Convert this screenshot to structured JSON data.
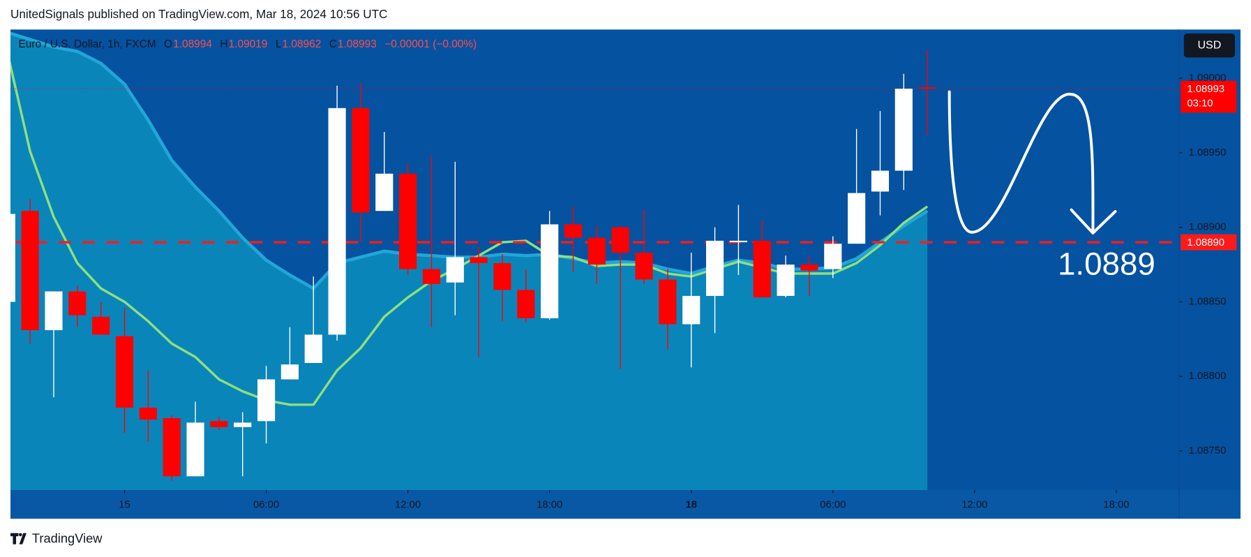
{
  "header": "UnitedSignals published on TradingView.com, Mar 18, 2024 10:56 UTC",
  "footer_brand": "TradingView",
  "chart_data": {
    "type": "candlestick",
    "legend": {
      "symbol": "Euro / U.S. Dollar, 1h, FXCM",
      "items": [
        {
          "key": "O",
          "value": "1.08994"
        },
        {
          "key": "H",
          "value": "1.09019"
        },
        {
          "key": "L",
          "value": "1.08962"
        },
        {
          "key": "C",
          "value": "1.08993"
        }
      ],
      "change": "−0.00001 (−0.00%)"
    },
    "currency": "USD",
    "up_color": "#ffffff",
    "down_color": "#ff0000",
    "x": [
      -5,
      -4,
      -3,
      -2,
      -1,
      0,
      1,
      2,
      3,
      4,
      5,
      6,
      7,
      8,
      9,
      10,
      11,
      12,
      13,
      14,
      15,
      16,
      17,
      18,
      19,
      20,
      21,
      22,
      23,
      24,
      25,
      26,
      27,
      28,
      29,
      30,
      31,
      32,
      33,
      34
    ],
    "open": [
      1.0885,
      1.08911,
      1.08831,
      1.08857,
      1.0884,
      1.08827,
      1.08779,
      1.08772,
      1.08733,
      1.0877,
      1.08766,
      1.0877,
      1.08798,
      1.08809,
      1.08828,
      1.0898,
      1.08911,
      1.08936,
      1.08872,
      1.08863,
      1.0888,
      1.08876,
      1.08858,
      1.08839,
      1.08902,
      1.08893,
      1.089,
      1.08883,
      1.08865,
      1.08835,
      1.08854,
      1.0889,
      1.08891,
      1.08854,
      1.08875,
      1.08872,
      1.08889,
      1.08924,
      1.08938,
      1.08994
    ],
    "high": [
      1.08909,
      1.08919,
      1.08857,
      1.08861,
      1.0885,
      1.08846,
      1.08804,
      1.08774,
      1.08783,
      1.08773,
      1.08776,
      1.08807,
      1.08833,
      1.08867,
      1.08995,
      1.08997,
      1.08964,
      1.08943,
      1.08948,
      1.08944,
      1.08887,
      1.08882,
      1.08872,
      1.08911,
      1.08914,
      1.08901,
      1.08901,
      1.08912,
      1.08872,
      1.08883,
      1.089,
      1.08915,
      1.08905,
      1.08881,
      1.08881,
      1.08894,
      1.08966,
      1.08978,
      1.09003,
      1.09019
    ],
    "low": [
      1.0885,
      1.08822,
      1.08786,
      1.08833,
      1.08828,
      1.08762,
      1.08756,
      1.0873,
      1.08733,
      1.08764,
      1.08733,
      1.08755,
      1.08798,
      1.08809,
      1.08824,
      1.0889,
      1.08911,
      1.08868,
      1.08833,
      1.08841,
      1.08813,
      1.08837,
      1.08836,
      1.08838,
      1.0887,
      1.08862,
      1.08805,
      1.08862,
      1.08818,
      1.08806,
      1.08829,
      1.08868,
      1.08853,
      1.08853,
      1.08854,
      1.08866,
      1.08889,
      1.08908,
      1.08925,
      1.08962
    ],
    "close": [
      1.08909,
      1.08831,
      1.08857,
      1.08841,
      1.08828,
      1.08779,
      1.08771,
      1.08733,
      1.08769,
      1.08766,
      1.08769,
      1.08798,
      1.08808,
      1.08828,
      1.0898,
      1.0891,
      1.08936,
      1.08872,
      1.08862,
      1.0888,
      1.08876,
      1.08858,
      1.08839,
      1.08902,
      1.08893,
      1.08875,
      1.08883,
      1.08865,
      1.08835,
      1.08854,
      1.08891,
      1.08891,
      1.08853,
      1.08875,
      1.08871,
      1.08889,
      1.08923,
      1.08938,
      1.08993,
      1.08993
    ],
    "indicators": [
      {
        "kind": "area",
        "color": "#0a85ba",
        "line_color": "#22a6d8",
        "values": [
          1.09031,
          1.09026,
          1.09021,
          1.09018,
          1.0901,
          1.08996,
          1.08972,
          1.08945,
          1.08927,
          1.08911,
          1.08893,
          1.08878,
          1.08868,
          1.08859,
          1.08876,
          1.0888,
          1.08884,
          1.08882,
          1.08881,
          1.0888,
          1.0888,
          1.08882,
          1.08881,
          1.08882,
          1.08879,
          1.08876,
          1.08877,
          1.08876,
          1.08872,
          1.08869,
          1.08874,
          1.08878,
          1.08876,
          1.08872,
          1.08872,
          1.08873,
          1.08879,
          1.0889,
          1.08901,
          1.08911
        ]
      },
      {
        "kind": "line",
        "color": "#8ee07e",
        "values": [
          1.0902,
          1.08951,
          1.08907,
          1.08876,
          1.08859,
          1.0885,
          1.08837,
          1.08822,
          1.08813,
          1.08798,
          1.0879,
          1.08784,
          1.08781,
          1.08781,
          1.08804,
          1.08819,
          1.0884,
          1.08853,
          1.08864,
          1.08872,
          1.08881,
          1.0889,
          1.08891,
          1.08881,
          1.0888,
          1.08874,
          1.08875,
          1.08875,
          1.08869,
          1.08867,
          1.08872,
          1.08877,
          1.08873,
          1.08869,
          1.08869,
          1.08869,
          1.08876,
          1.08888,
          1.08903,
          1.08914
        ]
      }
    ],
    "level": {
      "value": 1.0889,
      "label": "1.08890",
      "annotation": "1.0889",
      "color": "#ff1a1a"
    },
    "last_price": {
      "value": 1.08993,
      "label": "1.08993",
      "countdown": "03:10"
    },
    "xlim": [
      -4.83,
      44.66
    ],
    "xticks": [
      {
        "value": 0,
        "label": "15"
      },
      {
        "value": 6,
        "label": "06:00"
      },
      {
        "value": 12,
        "label": "12:00"
      },
      {
        "value": 18,
        "label": "18:00"
      },
      {
        "value": 24,
        "label": "18"
      },
      {
        "value": 30,
        "label": "06:00"
      },
      {
        "value": 36,
        "label": "12:00"
      },
      {
        "value": 42,
        "label": "18:00"
      }
    ],
    "ylim": [
      1.087238,
      1.090327
    ],
    "yticks": [
      {
        "value": 1.0875,
        "label": "1.08750"
      },
      {
        "value": 1.088,
        "label": "1.08800"
      },
      {
        "value": 1.0885,
        "label": "1.08850"
      },
      {
        "value": 1.089,
        "label": "1.08900"
      },
      {
        "value": 1.0895,
        "label": "1.08950"
      },
      {
        "value": 1.09,
        "label": "1.09000"
      }
    ]
  }
}
